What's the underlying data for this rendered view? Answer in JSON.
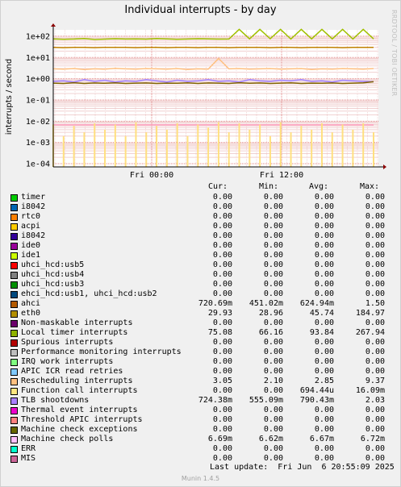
{
  "chart_data": {
    "type": "line",
    "title": "Individual interrupts - by day",
    "ylabel": "interrupts / second",
    "side_label": "RRDTOOL / TOBI OETIKER",
    "y_scale": "log",
    "ylim": [
      0.0001,
      300
    ],
    "y_ticks": [
      "1e+02",
      "1e+01",
      "1e+00",
      "1e-01",
      "1e-02",
      "1e-03",
      "1e-04"
    ],
    "x_ticks": [
      "Fri 00:00",
      "Fri 12:00"
    ],
    "grid": true,
    "series": [
      {
        "name": "Local timer interrupts",
        "color": "#a0c000",
        "values": [
          75,
          72,
          74,
          78,
          70,
          73,
          76,
          74,
          75,
          73,
          78,
          75,
          72,
          74,
          76,
          75,
          73,
          74,
          210,
          75,
          210,
          76,
          210,
          74,
          210,
          75,
          210,
          75,
          210,
          74,
          210,
          75
        ]
      },
      {
        "name": "eth0",
        "color": "#c08000",
        "values": [
          30,
          29,
          30,
          30,
          29,
          30,
          30,
          30,
          29,
          30,
          30,
          29,
          30,
          30,
          29,
          30,
          30,
          29,
          30,
          30,
          30,
          29,
          30,
          30,
          29,
          30,
          30,
          30,
          29,
          30,
          30,
          30
        ]
      },
      {
        "name": "Rescheduling interrupts",
        "color": "#ffc080",
        "values": [
          2.9,
          2.8,
          3.0,
          2.7,
          2.9,
          2.8,
          3.1,
          2.9,
          2.8,
          3.0,
          2.9,
          2.8,
          3.0,
          2.7,
          2.9,
          2.8,
          9.0,
          2.9,
          3.0,
          2.8,
          2.9,
          3.0,
          2.8,
          2.9,
          3.0,
          2.7,
          2.9,
          2.8,
          3.0,
          2.9,
          2.8,
          3.0
        ]
      },
      {
        "name": "TLB shootdowns",
        "color": "#a080ff",
        "values": [
          0.75,
          0.8,
          0.7,
          0.9,
          0.75,
          0.85,
          0.7,
          0.8,
          0.75,
          0.9,
          0.8,
          0.7,
          0.85,
          0.75,
          0.8,
          0.9,
          0.75,
          0.8,
          0.7,
          0.9,
          0.8,
          0.75,
          0.85,
          0.8,
          0.9,
          0.75,
          0.8,
          0.7,
          0.85,
          0.8,
          0.75,
          0.72
        ]
      },
      {
        "name": "ahci",
        "color": "#806000",
        "values": [
          0.62,
          0.6,
          0.65,
          0.6,
          0.63,
          0.61,
          0.64,
          0.6,
          0.62,
          0.63,
          0.6,
          0.62,
          0.61,
          0.64,
          0.6,
          0.63,
          0.62,
          0.6,
          0.65,
          0.61,
          0.63,
          0.6,
          0.62,
          0.64,
          0.6,
          0.62,
          0.61,
          0.63,
          0.6,
          0.62,
          0.64,
          0.72
        ]
      },
      {
        "name": "Machine check polls",
        "color": "#ffa0c0",
        "values": [
          0.0067,
          0.0067,
          0.0067,
          0.0067,
          0.0067,
          0.0067,
          0.0067,
          0.0067,
          0.0067,
          0.0067,
          0.0067,
          0.0067,
          0.0067,
          0.0067,
          0.0067,
          0.0067,
          0.0067,
          0.0067,
          0.0067,
          0.0067,
          0.0067,
          0.0067,
          0.0067,
          0.0067,
          0.0067,
          0.0067,
          0.0067,
          0.0067,
          0.0067,
          0.0067,
          0.0067,
          0.0067
        ]
      },
      {
        "name": "Function call interrupts",
        "color": "#ffe080",
        "type": "spikes",
        "values": [
          0.007,
          0.002,
          0.006,
          0.003,
          0.008,
          0.004,
          0.007,
          0.002,
          0.009,
          0.003,
          0.006,
          0.004,
          0.008,
          0.002,
          0.007,
          0.005,
          0.009,
          0.003,
          0.008,
          0.004,
          0.007,
          0.002,
          0.009,
          0.003,
          0.006,
          0.004,
          0.008,
          0.003,
          0.007,
          0.004,
          0.008,
          0.003
        ]
      }
    ]
  },
  "legend": {
    "columns": [
      "Cur:",
      "Min:",
      "Avg:",
      "Max:"
    ],
    "rows": [
      {
        "name": "timer",
        "color": "#00cc00",
        "cur": "0.00",
        "min": "0.00",
        "avg": "0.00",
        "max": "0.00"
      },
      {
        "name": "i8042",
        "color": "#0066b3",
        "cur": "0.00",
        "min": "0.00",
        "avg": "0.00",
        "max": "0.00"
      },
      {
        "name": "rtc0",
        "color": "#ff8000",
        "cur": "0.00",
        "min": "0.00",
        "avg": "0.00",
        "max": "0.00"
      },
      {
        "name": "acpi",
        "color": "#ffcc00",
        "cur": "0.00",
        "min": "0.00",
        "avg": "0.00",
        "max": "0.00"
      },
      {
        "name": "i8042",
        "color": "#330099",
        "cur": "0.00",
        "min": "0.00",
        "avg": "0.00",
        "max": "0.00"
      },
      {
        "name": "ide0",
        "color": "#990099",
        "cur": "0.00",
        "min": "0.00",
        "avg": "0.00",
        "max": "0.00"
      },
      {
        "name": "ide1",
        "color": "#ccff00",
        "cur": "0.00",
        "min": "0.00",
        "avg": "0.00",
        "max": "0.00"
      },
      {
        "name": "uhci_hcd:usb5",
        "color": "#ff0000",
        "cur": "0.00",
        "min": "0.00",
        "avg": "0.00",
        "max": "0.00"
      },
      {
        "name": "uhci_hcd:usb4",
        "color": "#808080",
        "cur": "0.00",
        "min": "0.00",
        "avg": "0.00",
        "max": "0.00"
      },
      {
        "name": "uhci_hcd:usb3",
        "color": "#008f00",
        "cur": "0.00",
        "min": "0.00",
        "avg": "0.00",
        "max": "0.00"
      },
      {
        "name": "ehci_hcd:usb1, uhci_hcd:usb2",
        "color": "#00487d",
        "cur": "0.00",
        "min": "0.00",
        "avg": "0.00",
        "max": "0.00"
      },
      {
        "name": "ahci",
        "color": "#b35a00",
        "cur": "720.69m",
        "min": "451.02m",
        "avg": "624.94m",
        "max": "1.50"
      },
      {
        "name": "eth0",
        "color": "#b38f00",
        "cur": "29.93",
        "min": "28.96",
        "avg": "45.74",
        "max": "184.97"
      },
      {
        "name": "Non-maskable interrupts",
        "color": "#6b006b",
        "cur": "0.00",
        "min": "0.00",
        "avg": "0.00",
        "max": "0.00"
      },
      {
        "name": "Local timer interrupts",
        "color": "#8fb300",
        "cur": "75.08",
        "min": "66.16",
        "avg": "93.84",
        "max": "267.94"
      },
      {
        "name": "Spurious interrupts",
        "color": "#b30000",
        "cur": "0.00",
        "min": "0.00",
        "avg": "0.00",
        "max": "0.00"
      },
      {
        "name": "Performance monitoring interrupts",
        "color": "#bebebe",
        "cur": "0.00",
        "min": "0.00",
        "avg": "0.00",
        "max": "0.00"
      },
      {
        "name": "IRQ work interrupts",
        "color": "#80ff80",
        "cur": "0.00",
        "min": "0.00",
        "avg": "0.00",
        "max": "0.00"
      },
      {
        "name": "APIC ICR read retries",
        "color": "#80c9ff",
        "cur": "0.00",
        "min": "0.00",
        "avg": "0.00",
        "max": "0.00"
      },
      {
        "name": "Rescheduling interrupts",
        "color": "#ffc080",
        "cur": "3.05",
        "min": "2.10",
        "avg": "2.85",
        "max": "9.37"
      },
      {
        "name": "Function call interrupts",
        "color": "#ffe680",
        "cur": "0.00",
        "min": "0.00",
        "avg": "694.44u",
        "max": "16.09m"
      },
      {
        "name": "TLB shootdowns",
        "color": "#aa80ff",
        "cur": "724.38m",
        "min": "555.09m",
        "avg": "790.43m",
        "max": "2.03"
      },
      {
        "name": "Thermal event interrupts",
        "color": "#ee00cc",
        "cur": "0.00",
        "min": "0.00",
        "avg": "0.00",
        "max": "0.00"
      },
      {
        "name": "Threshold APIC interrupts",
        "color": "#ff8080",
        "cur": "0.00",
        "min": "0.00",
        "avg": "0.00",
        "max": "0.00"
      },
      {
        "name": "Machine check exceptions",
        "color": "#666600",
        "cur": "0.00",
        "min": "0.00",
        "avg": "0.00",
        "max": "0.00"
      },
      {
        "name": "Machine check polls",
        "color": "#ffbfff",
        "cur": "6.69m",
        "min": "6.62m",
        "avg": "6.67m",
        "max": "6.72m"
      },
      {
        "name": "ERR",
        "color": "#00ffcc",
        "cur": "0.00",
        "min": "0.00",
        "avg": "0.00",
        "max": "0.00"
      },
      {
        "name": "MIS",
        "color": "#cc6699",
        "cur": "0.00",
        "min": "0.00",
        "avg": "0.00",
        "max": "0.00"
      }
    ]
  },
  "footer": {
    "last_update": "Last update:  Fri Jun  6 20:55:09 2025",
    "version": "Munin 1.4.5"
  }
}
